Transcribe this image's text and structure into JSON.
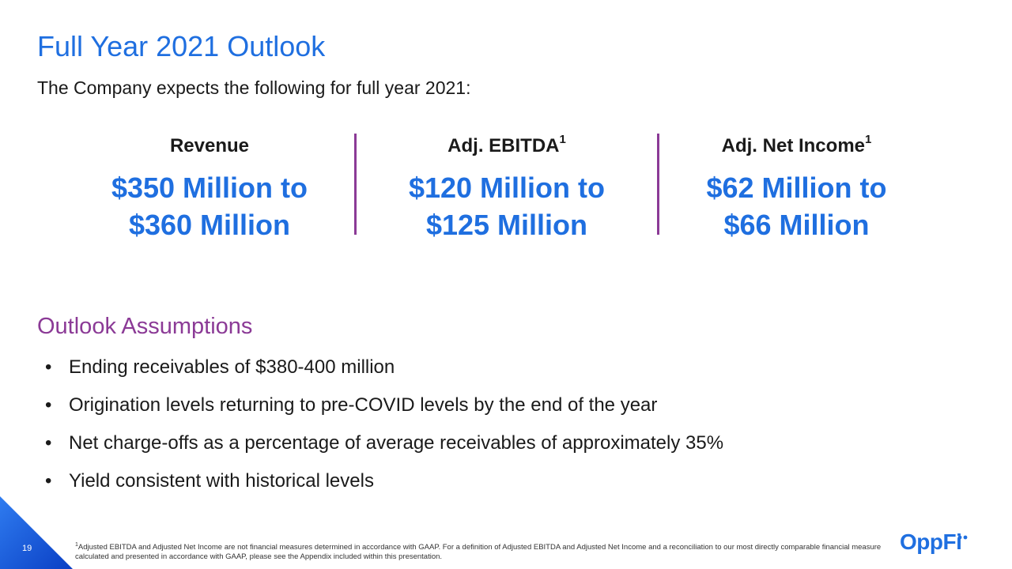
{
  "title": "Full Year 2021 Outlook",
  "subtitle": "The Company expects the following for full year 2021:",
  "metrics": [
    {
      "label": "Revenue",
      "sup": "",
      "value_line1": "$350 Million to",
      "value_line2": "$360 Million"
    },
    {
      "label": "Adj. EBITDA",
      "sup": "1",
      "value_line1": "$120 Million to",
      "value_line2": "$125 Million"
    },
    {
      "label": "Adj. Net Income",
      "sup": "1",
      "value_line1": "$62 Million to",
      "value_line2": "$66 Million"
    }
  ],
  "assumptions": {
    "title": "Outlook Assumptions",
    "bullet": "•",
    "items": [
      "Ending receivables of $380-400 million",
      "Origination levels returning to pre-COVID levels by the end of the year",
      "Net charge-offs as a percentage of average receivables of approximately 35%",
      "Yield consistent with historical levels"
    ]
  },
  "footer": {
    "page_number": "19",
    "footnote_sup": "1",
    "footnote": "Adjusted EBITDA and Adjusted Net Income are not financial measures determined in accordance with GAAP. For a definition of Adjusted EBITDA and Adjusted Net Income and a reconciliation to our most directly comparable financial measure calculated and presented in accordance with GAAP, please see the Appendix included within this presentation.",
    "logo_text": "OppFi"
  },
  "colors": {
    "accent_blue": "#1f6fe0",
    "accent_purple": "#8b3a96"
  }
}
